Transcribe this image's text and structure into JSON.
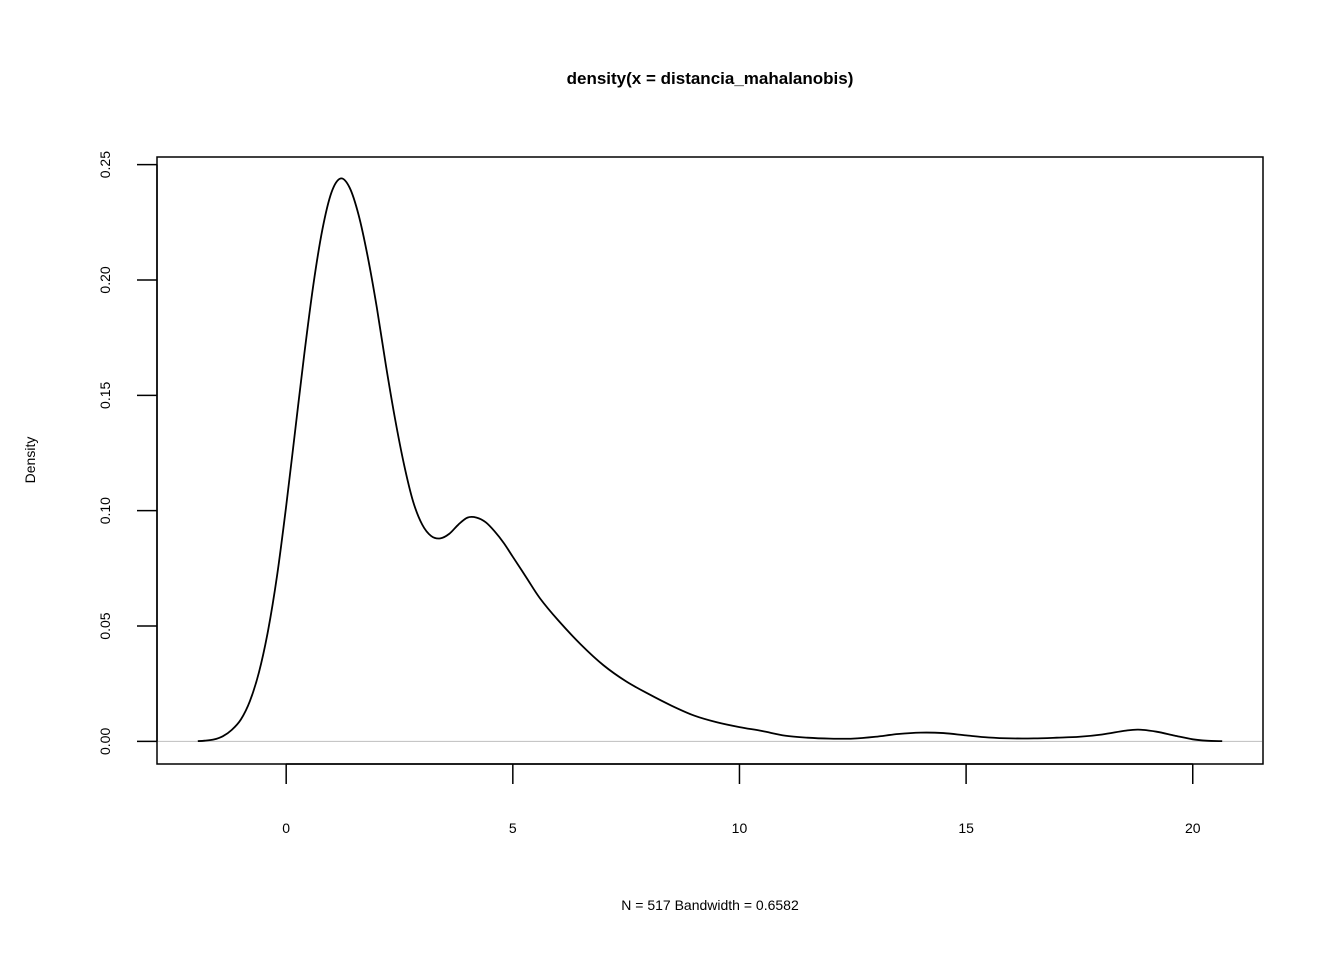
{
  "chart_data": {
    "type": "line",
    "title": "density(x = distancia_mahalanobis)",
    "xlabel": "N = 517   Bandwidth = 0.6582",
    "ylabel": "Density",
    "xlim": [
      -2.85,
      21.55
    ],
    "ylim": [
      -0.0098,
      0.2533
    ],
    "grid": false,
    "legend": "none",
    "x_ticks": [
      0,
      5,
      10,
      15,
      20
    ],
    "x_tick_labels": [
      "0",
      "5",
      "10",
      "15",
      "20"
    ],
    "y_ticks": [
      0,
      0.05,
      0.1,
      0.15,
      0.2,
      0.25
    ],
    "y_tick_labels": [
      "0.00",
      "0.05",
      "0.10",
      "0.15",
      "0.20",
      "0.25"
    ],
    "baseline": 0,
    "baseline_color": "#bebebe",
    "line_color": "#000000",
    "series": [
      {
        "x": [
          -1.95,
          -1.8,
          -1.6,
          -1.4,
          -1.2,
          -1.0,
          -0.8,
          -0.6,
          -0.4,
          -0.2,
          0.0,
          0.2,
          0.4,
          0.6,
          0.8,
          1.0,
          1.2,
          1.4,
          1.6,
          1.8,
          2.0,
          2.2,
          2.4,
          2.6,
          2.8,
          3.0,
          3.2,
          3.4,
          3.6,
          3.8,
          4.0,
          4.2,
          4.4,
          4.6,
          4.8,
          5.0,
          5.3,
          5.6,
          6.0,
          6.5,
          7.0,
          7.5,
          8.0,
          8.5,
          9.0,
          9.5,
          10.0,
          10.5,
          11.0,
          11.5,
          12.0,
          12.5,
          13.0,
          13.5,
          14.0,
          14.5,
          15.0,
          15.5,
          16.0,
          16.5,
          17.0,
          17.5,
          18.0,
          18.5,
          18.8,
          19.2,
          19.6,
          20.0,
          20.3,
          20.65
        ],
        "y": [
          0.0001,
          0.0003,
          0.0008,
          0.0022,
          0.005,
          0.0095,
          0.0175,
          0.03,
          0.048,
          0.072,
          0.102,
          0.135,
          0.168,
          0.198,
          0.222,
          0.238,
          0.244,
          0.24,
          0.228,
          0.21,
          0.188,
          0.163,
          0.14,
          0.12,
          0.104,
          0.094,
          0.089,
          0.088,
          0.09,
          0.094,
          0.097,
          0.097,
          0.095,
          0.091,
          0.086,
          0.08,
          0.071,
          0.062,
          0.0525,
          0.042,
          0.033,
          0.026,
          0.0205,
          0.0155,
          0.0112,
          0.0083,
          0.0062,
          0.0045,
          0.0025,
          0.0016,
          0.0012,
          0.0012,
          0.002,
          0.0032,
          0.0038,
          0.0036,
          0.0026,
          0.0017,
          0.0013,
          0.0013,
          0.0016,
          0.002,
          0.003,
          0.0046,
          0.0051,
          0.0042,
          0.0025,
          0.0009,
          0.0003,
          0.0001
        ]
      }
    ]
  }
}
